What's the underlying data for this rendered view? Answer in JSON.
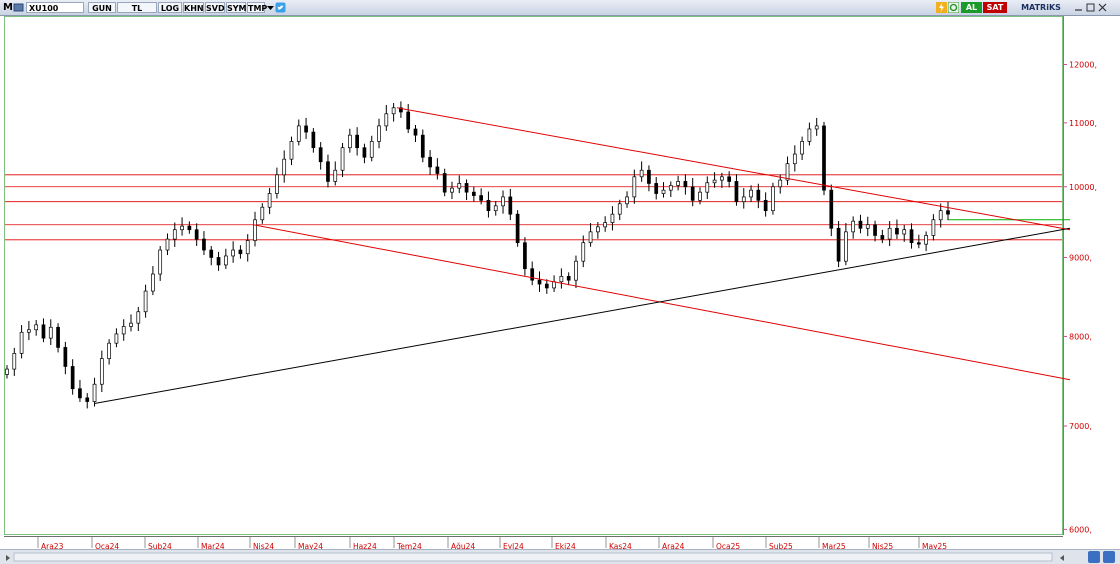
{
  "toolbar": {
    "menu_label": "M",
    "symbol": "XU100",
    "buttons": [
      "GUN",
      "TL",
      "LOG",
      "KHN",
      "SVD",
      "SYM",
      "TMP"
    ],
    "buy_label": "AL",
    "sell_label": "SAT",
    "brand": "MATRiKS"
  },
  "colors": {
    "candle": "#000000",
    "trendline_red": "#e00000",
    "trendline_black": "#000000",
    "level_green": "#00b000",
    "axis_text": "#d00000"
  },
  "chart_data": {
    "type": "candlestick",
    "title": "",
    "symbol": "XU100",
    "period": "GUN",
    "scale": "log",
    "ylim": [
      5950,
      12900
    ],
    "yticks": [
      {
        "value": 12000,
        "label": "12000,"
      },
      {
        "value": 11000,
        "label": "11000,"
      },
      {
        "value": 10000,
        "label": "10000,"
      },
      {
        "value": 9000,
        "label": "9000,"
      },
      {
        "value": 8000,
        "label": "8000,"
      },
      {
        "value": 7000,
        "label": "7000,"
      },
      {
        "value": 6000,
        "label": "6000,"
      }
    ],
    "xticks": [
      "Ara23",
      "Oca24",
      "Şub24",
      "Mar24",
      "Nis24",
      "May24",
      "Haz24",
      "Tem24",
      "Ağu24",
      "Eyl24",
      "Eki24",
      "Kas24",
      "Ara24",
      "Oca25",
      "Şub25",
      "Mar25",
      "Nis25",
      "May25"
    ],
    "close_series": {
      "name": "XU100",
      "values": [
        7620,
        7800,
        8050,
        8080,
        8140,
        7980,
        8110,
        7870,
        7650,
        7400,
        7300,
        7260,
        7450,
        7740,
        7920,
        8030,
        8120,
        8160,
        8300,
        8560,
        8780,
        9100,
        9250,
        9380,
        9430,
        9380,
        9250,
        9100,
        9000,
        8900,
        9020,
        9100,
        9050,
        9230,
        9520,
        9700,
        9900,
        10180,
        10420,
        10700,
        10950,
        10850,
        10600,
        10380,
        10080,
        10250,
        10600,
        10800,
        10600,
        10450,
        10700,
        10950,
        11150,
        11250,
        11180,
        10900,
        10800,
        10450,
        10300,
        10200,
        9920,
        9980,
        10050,
        9920,
        9870,
        9800,
        9650,
        9720,
        9850,
        9600,
        9200,
        8850,
        8700,
        8650,
        8600,
        8680,
        8750,
        8700,
        8950,
        9200,
        9350,
        9420,
        9480,
        9600,
        9750,
        9850,
        10150,
        10250,
        10050,
        9900,
        9950,
        10020,
        10080,
        10000,
        9800,
        9920,
        10060,
        10100,
        10150,
        10080,
        9780,
        9850,
        9950,
        9800,
        9650,
        10000,
        10100,
        10350,
        10500,
        10700,
        10900,
        10950,
        9950,
        9400,
        8950,
        9350,
        9500,
        9400,
        9450,
        9300,
        9250,
        9400,
        9320,
        9380,
        9200,
        9180,
        9300,
        9520,
        9650,
        9600
      ]
    },
    "horizontal_levels": [
      10180,
      10000,
      9780,
      9450,
      9240
    ],
    "green_level": 9520,
    "red_trendlines": [
      {
        "from": {
          "date": "Tem24",
          "value": 11250
        },
        "to": {
          "date": "May25+",
          "value": 9380
        }
      },
      {
        "from": {
          "date": "Nis24",
          "value": 9450
        },
        "to": {
          "date": "May25+",
          "value": 7500
        }
      }
    ],
    "black_trendline": {
      "from": {
        "date": "Oca24",
        "value": 7240
      },
      "to": {
        "date": "May25+",
        "value": 9400
      }
    }
  }
}
